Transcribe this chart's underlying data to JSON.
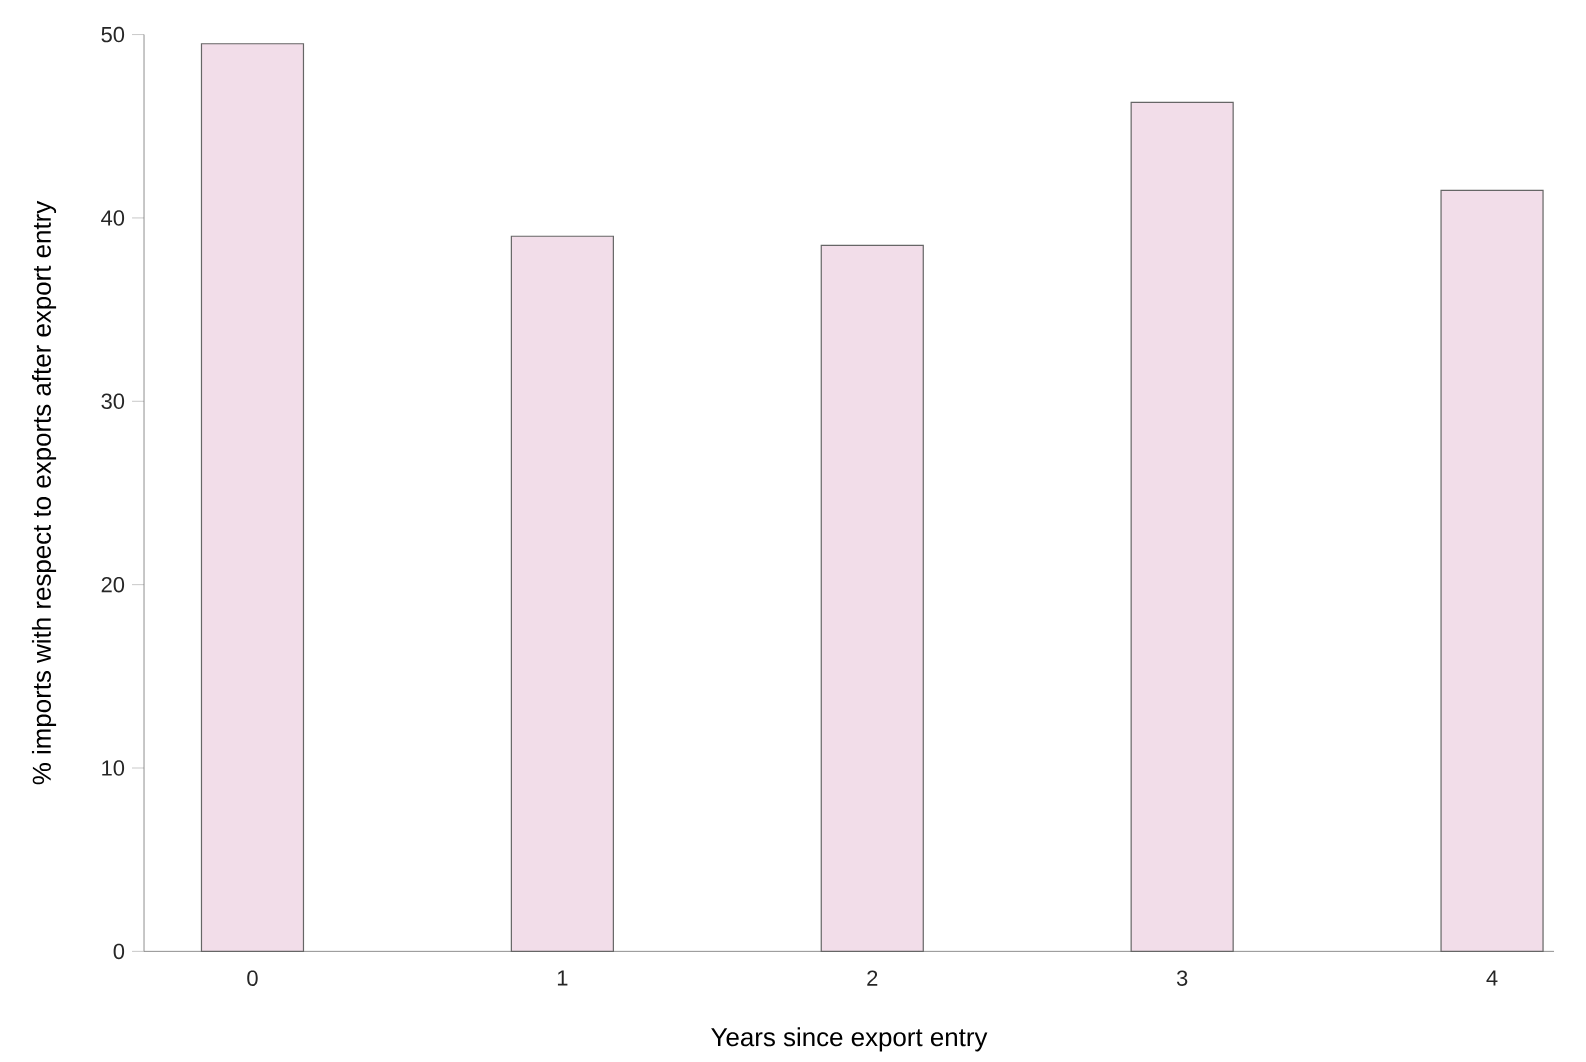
{
  "chart_data": {
    "type": "bar",
    "xlabel": "Years since export entry",
    "ylabel": "% imports with respect to exports after export entry",
    "categories": [
      "0",
      "1",
      "2",
      "3",
      "4"
    ],
    "values": [
      49.5,
      39.0,
      38.5,
      46.3,
      41.5
    ],
    "color": "#f2dde9",
    "yticks": [
      0,
      10,
      20,
      30,
      40,
      50
    ],
    "ylim": [
      0,
      50
    ]
  }
}
